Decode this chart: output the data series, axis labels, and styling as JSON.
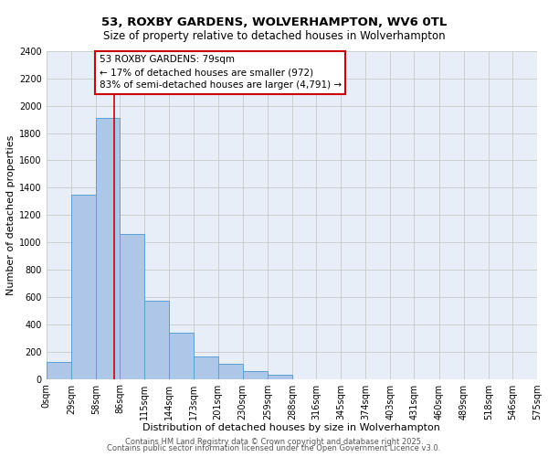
{
  "title": "53, ROXBY GARDENS, WOLVERHAMPTON, WV6 0TL",
  "subtitle": "Size of property relative to detached houses in Wolverhampton",
  "xlabel": "Distribution of detached houses by size in Wolverhampton",
  "ylabel": "Number of detached properties",
  "bar_color": "#aec6e8",
  "bar_edge_color": "#5a9fd4",
  "background_color": "#e8eef8",
  "grid_color": "#c8c8c8",
  "annotation_line1": "53 ROXBY GARDENS: 79sqm",
  "annotation_line2": "← 17% of detached houses are smaller (972)",
  "annotation_line3": "83% of semi-detached houses are larger (4,791) →",
  "vline_x": 79,
  "vline_color": "#cc0000",
  "ylim": [
    0,
    2400
  ],
  "yticks": [
    0,
    200,
    400,
    600,
    800,
    1000,
    1200,
    1400,
    1600,
    1800,
    2000,
    2200,
    2400
  ],
  "bin_edges": [
    0,
    29,
    58,
    86,
    115,
    144,
    173,
    201,
    230,
    259,
    288,
    316,
    345,
    374,
    403,
    431,
    460,
    489,
    518,
    546,
    575
  ],
  "bin_labels": [
    "0sqm",
    "29sqm",
    "58sqm",
    "86sqm",
    "115sqm",
    "144sqm",
    "173sqm",
    "201sqm",
    "230sqm",
    "259sqm",
    "288sqm",
    "316sqm",
    "345sqm",
    "374sqm",
    "403sqm",
    "431sqm",
    "460sqm",
    "489sqm",
    "518sqm",
    "546sqm",
    "575sqm"
  ],
  "bar_heights": [
    125,
    1350,
    1910,
    1060,
    570,
    340,
    165,
    110,
    60,
    30,
    0,
    0,
    0,
    0,
    0,
    0,
    0,
    0,
    0,
    0
  ],
  "footer_line1": "Contains HM Land Registry data © Crown copyright and database right 2025.",
  "footer_line2": "Contains public sector information licensed under the Open Government Licence v3.0.",
  "title_fontsize": 9.5,
  "subtitle_fontsize": 8.5,
  "axis_label_fontsize": 8,
  "tick_fontsize": 7,
  "annotation_fontsize": 7.5,
  "footer_fontsize": 6
}
